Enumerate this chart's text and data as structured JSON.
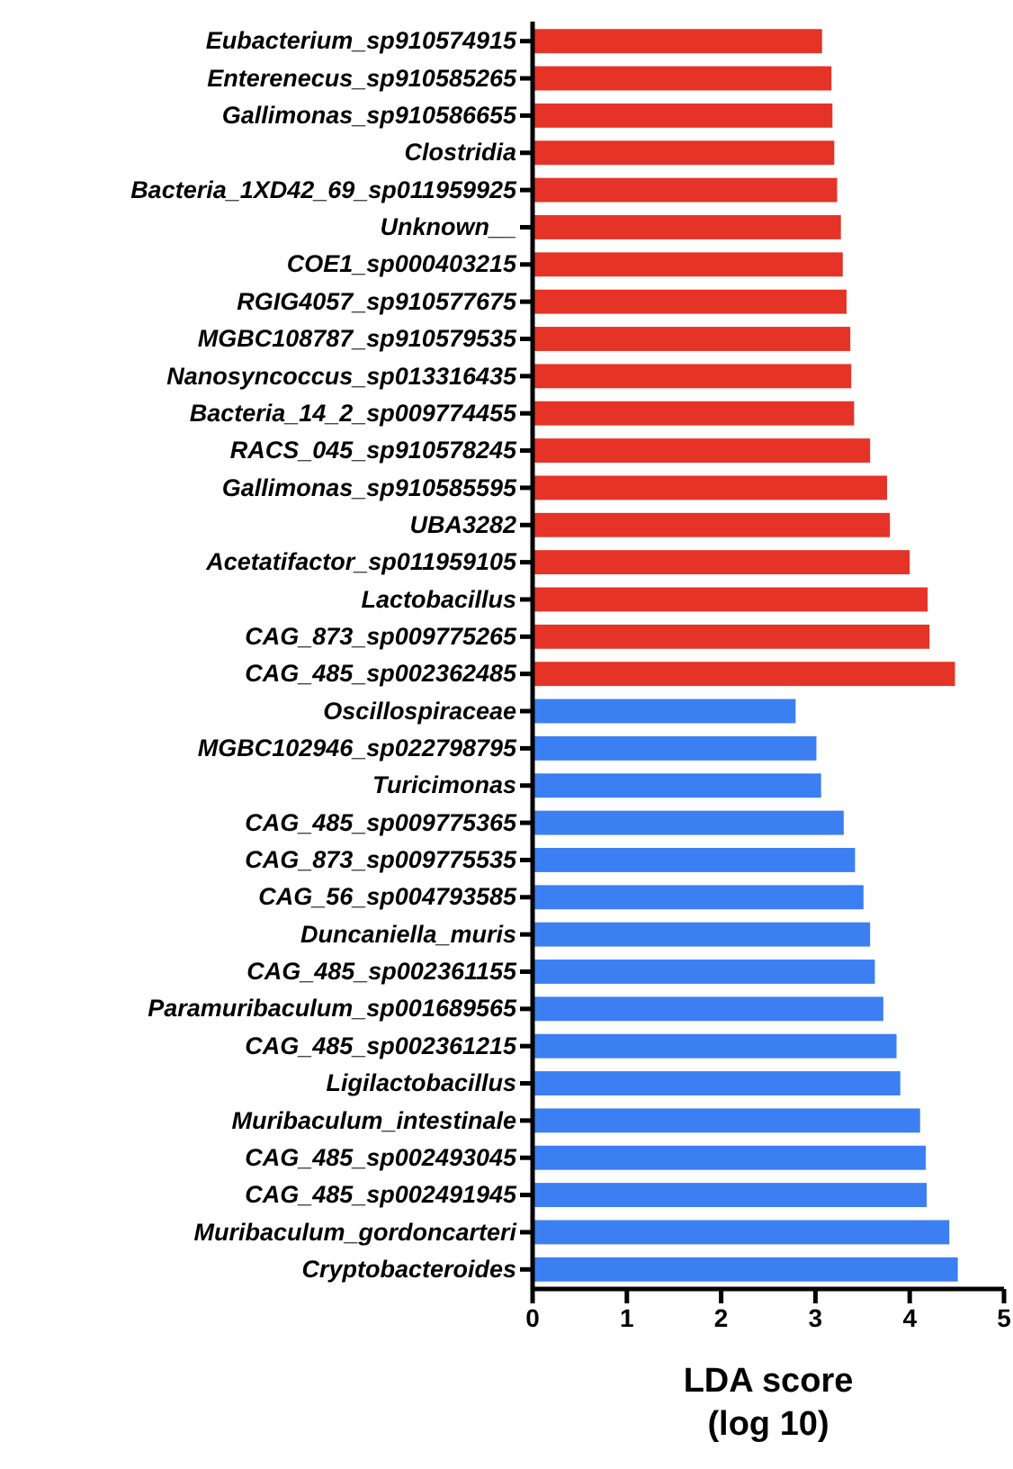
{
  "chart_data": {
    "type": "bar",
    "orientation": "horizontal",
    "xlabel": "LDA score\n(log 10)",
    "categories": [
      "Eubacterium_sp910574915",
      "Enterenecus_sp910585265",
      "Gallimonas_sp910586655",
      "Clostridia",
      "Bacteria_1XD42_69_sp011959925",
      "Unknown__",
      "COE1_sp000403215",
      "RGIG4057_sp910577675",
      "MGBC108787_sp910579535",
      "Nanosyncoccus_sp013316435",
      "Bacteria_14_2_sp009774455",
      "RACS_045_sp910578245",
      "Gallimonas_sp910585595",
      "UBA3282",
      "Acetatifactor_sp011959105",
      "Lactobacillus",
      "CAG_873_sp009775265",
      "CAG_485_sp002362485",
      "Oscillospiraceae",
      "MGBC102946_sp022798795",
      "Turicimonas",
      "CAG_485_sp009775365",
      "CAG_873_sp009775535",
      "CAG_56_sp004793585",
      "Duncaniella_muris",
      "CAG_485_sp002361155",
      "Paramuribaculum_sp001689565",
      "CAG_485_sp002361215",
      "Ligilactobacillus",
      "Muribaculum_intestinale",
      "CAG_485_sp002493045",
      "CAG_485_sp002491945",
      "Muribaculum_gordoncarteri",
      "Cryptobacteroides"
    ],
    "values": [
      3.07,
      3.17,
      3.18,
      3.2,
      3.23,
      3.27,
      3.29,
      3.33,
      3.37,
      3.38,
      3.41,
      3.58,
      3.76,
      3.79,
      4.0,
      4.19,
      4.21,
      4.48,
      2.79,
      3.01,
      3.06,
      3.3,
      3.42,
      3.51,
      3.58,
      3.63,
      3.72,
      3.86,
      3.9,
      4.11,
      4.17,
      4.18,
      4.42,
      4.51
    ],
    "colors": [
      "#e63327",
      "#e63327",
      "#e63327",
      "#e63327",
      "#e63327",
      "#e63327",
      "#e63327",
      "#e63327",
      "#e63327",
      "#e63327",
      "#e63327",
      "#e63327",
      "#e63327",
      "#e63327",
      "#e63327",
      "#e63327",
      "#e63327",
      "#e63327",
      "#3b7ff2",
      "#3b7ff2",
      "#3b7ff2",
      "#3b7ff2",
      "#3b7ff2",
      "#3b7ff2",
      "#3b7ff2",
      "#3b7ff2",
      "#3b7ff2",
      "#3b7ff2",
      "#3b7ff2",
      "#3b7ff2",
      "#3b7ff2",
      "#3b7ff2",
      "#3b7ff2",
      "#3b7ff2"
    ],
    "xlim": [
      0,
      5
    ],
    "xticks": [
      0,
      1,
      2,
      3,
      4,
      5
    ]
  }
}
